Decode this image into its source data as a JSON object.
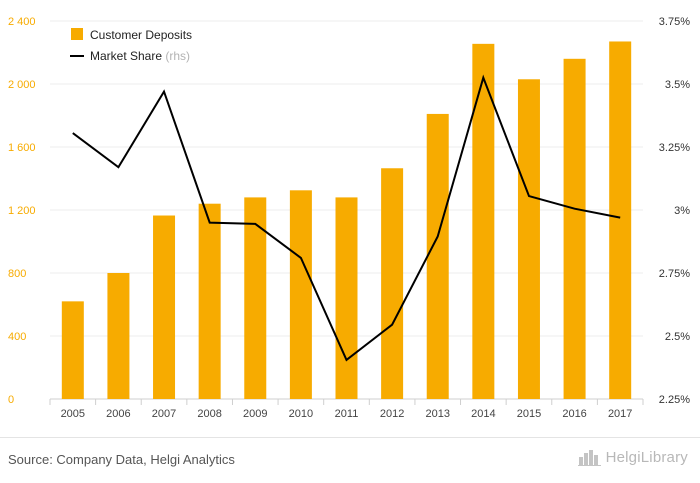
{
  "chart_data": {
    "type": "bar",
    "categories": [
      "2005",
      "2006",
      "2007",
      "2008",
      "2009",
      "2010",
      "2011",
      "2012",
      "2013",
      "2014",
      "2015",
      "2016",
      "2017"
    ],
    "series": [
      {
        "name": "Customer Deposits",
        "kind": "bar",
        "axis": "left",
        "color": "#f7ab00",
        "values": [
          620,
          800,
          1165,
          1240,
          1280,
          1325,
          1280,
          1465,
          1810,
          2255,
          2030,
          2160,
          2270
        ]
      },
      {
        "name": "Market Share",
        "suffix": "(rhs)",
        "kind": "line",
        "axis": "right",
        "color": "#000000",
        "values": [
          3.305,
          3.17,
          3.47,
          2.95,
          2.945,
          2.81,
          2.405,
          2.545,
          2.895,
          3.525,
          3.055,
          3.005,
          2.97
        ]
      }
    ],
    "y_left": {
      "ylim": [
        0,
        2400
      ],
      "ticks": [
        0,
        400,
        800,
        1200,
        1600,
        2000,
        2400
      ],
      "tick_labels": [
        "0",
        "400",
        "800",
        "1 200",
        "1 600",
        "2 000",
        "2 400"
      ],
      "label_color": "#f7ab00"
    },
    "y_right": {
      "ylim": [
        2.25,
        3.75
      ],
      "ticks": [
        2.25,
        2.5,
        2.75,
        3.0,
        3.25,
        3.5,
        3.75
      ],
      "tick_labels": [
        "2.25%",
        "2.5%",
        "2.75%",
        "3%",
        "3.25%",
        "3.5%",
        "3.75%"
      ]
    },
    "grid": true,
    "legend": "top-left"
  },
  "footer": {
    "source": "Source: Company Data, Helgi Analytics",
    "logo_text": "HelgiLibrary"
  }
}
